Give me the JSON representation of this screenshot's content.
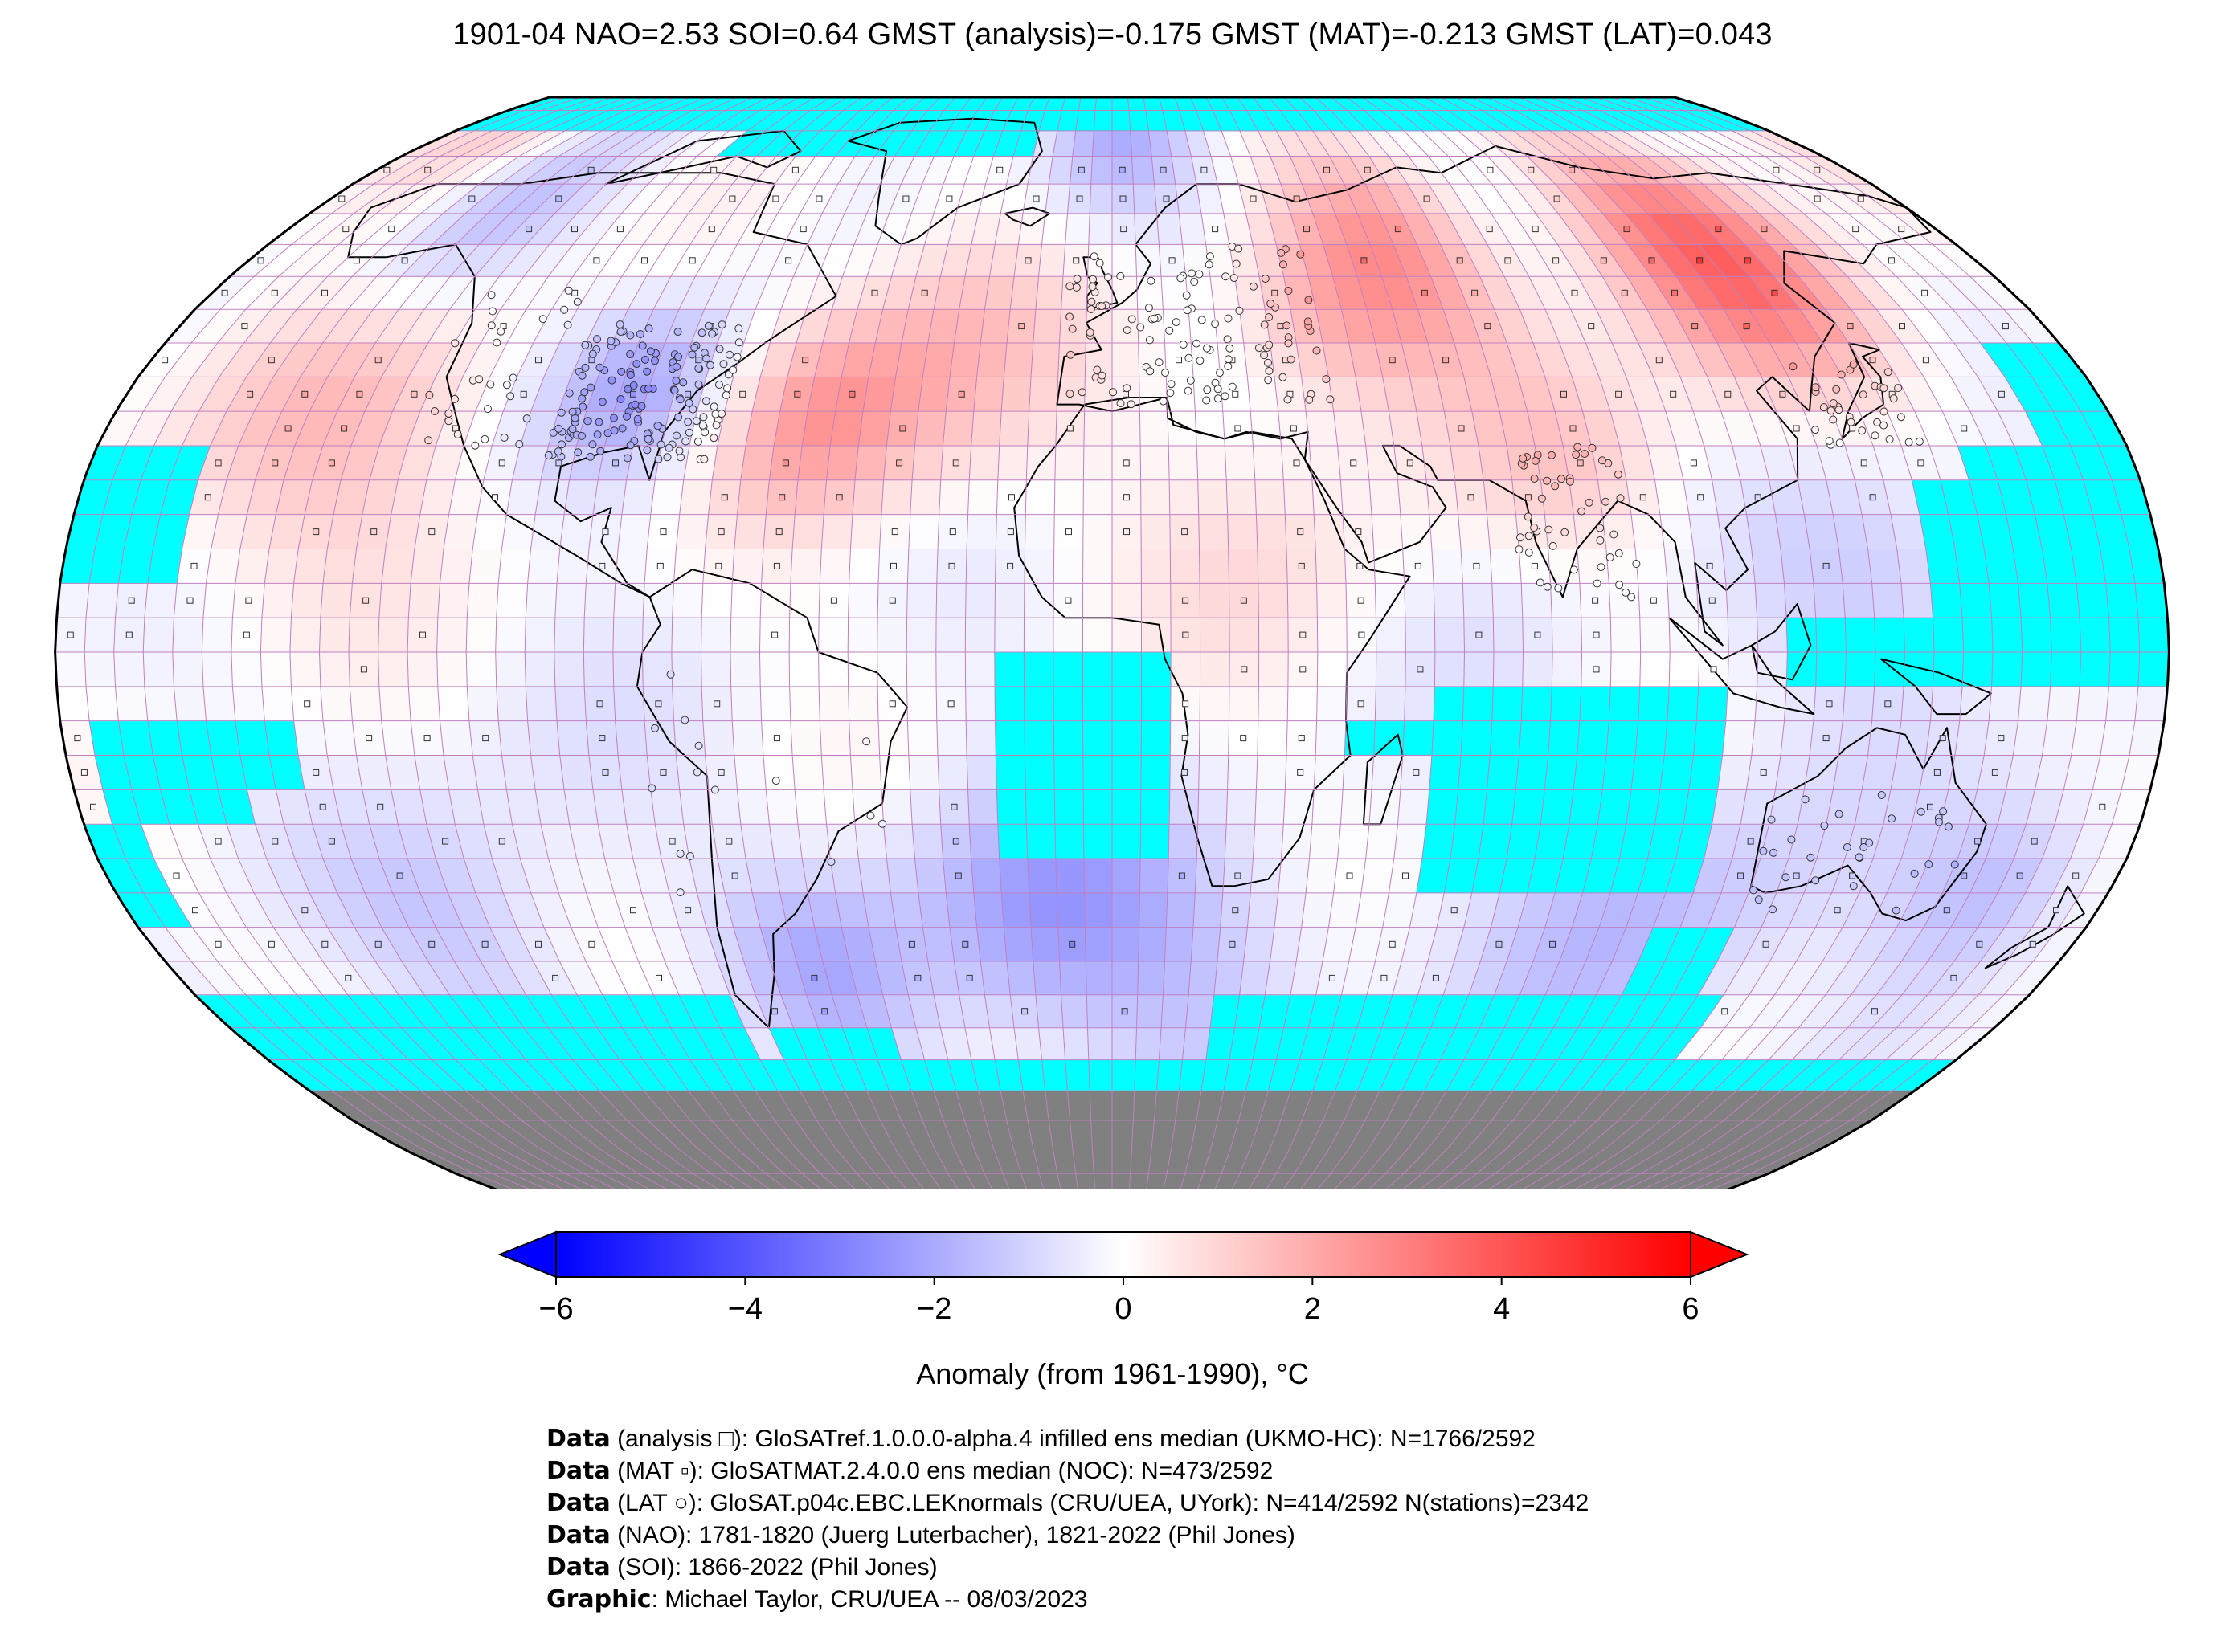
{
  "title": "1901-04 NAO=2.53 SOI=0.64 GMST (analysis)=-0.175 GMST (MAT)=-0.213 GMST (LAT)=0.043",
  "colors": {
    "no_data": "#00ffff",
    "land_ice": "#808080",
    "grid_line": "#c080c0",
    "cold": "#0000ff",
    "warm": "#ff0000",
    "neutral": "#ffffff"
  },
  "colorbar": {
    "label": "Anomaly (from 1961-1990), °C",
    "min": -6,
    "max": 6,
    "ticks": [
      "−6",
      "−4",
      "−2",
      "0",
      "2",
      "4",
      "6"
    ],
    "tick_values": [
      -6,
      -4,
      -2,
      0,
      2,
      4,
      6
    ]
  },
  "credits": [
    {
      "bold": "Data",
      "text": " (analysis □): GloSATref.1.0.0.0-alpha.4 infilled ens median (UKMO-HC): N=1766/2592"
    },
    {
      "bold": "Data",
      "text": " (MAT ▫): GloSATMAT.2.4.0.0 ens median (NOC): N=473/2592"
    },
    {
      "bold": "Data",
      "text": " (LAT ○): GloSAT.p04c.EBC.LEKnormals (CRU/UEA, UYork): N=414/2592 N(stations)=2342"
    },
    {
      "bold": "Data",
      "text": " (NAO): 1781-1820 (Juerg Luterbacher), 1821-2022 (Phil Jones)"
    },
    {
      "bold": "Data",
      "text": " (SOI): 1866-2022 (Phil Jones)"
    },
    {
      "bold": "Graphic",
      "text": ": Michael Taylor, CRU/UEA -- 08/03/2023"
    }
  ],
  "chart_data": {
    "type": "heatmap",
    "projection": "Robinson",
    "grid": "5x5 degree",
    "units": "°C",
    "anomaly_regions": [
      {
        "region": "Eastern Siberia",
        "anomaly": 3.5
      },
      {
        "region": "Central Russia",
        "anomaly": 2.5
      },
      {
        "region": "North Atlantic",
        "anomaly": 2.0
      },
      {
        "region": "Eastern North America",
        "anomaly": -2.0
      },
      {
        "region": "Alaska/NW Canada",
        "anomaly": -1.5
      },
      {
        "region": "South Atlantic",
        "anomaly": -2.0
      },
      {
        "region": "Southern Ocean (Indian sector)",
        "anomaly": -1.5
      },
      {
        "region": "Tasman Sea",
        "anomaly": -1.5
      },
      {
        "region": "Northeast Pacific",
        "anomaly": 1.5
      },
      {
        "region": "Tropics",
        "anomaly": -0.3
      }
    ]
  }
}
